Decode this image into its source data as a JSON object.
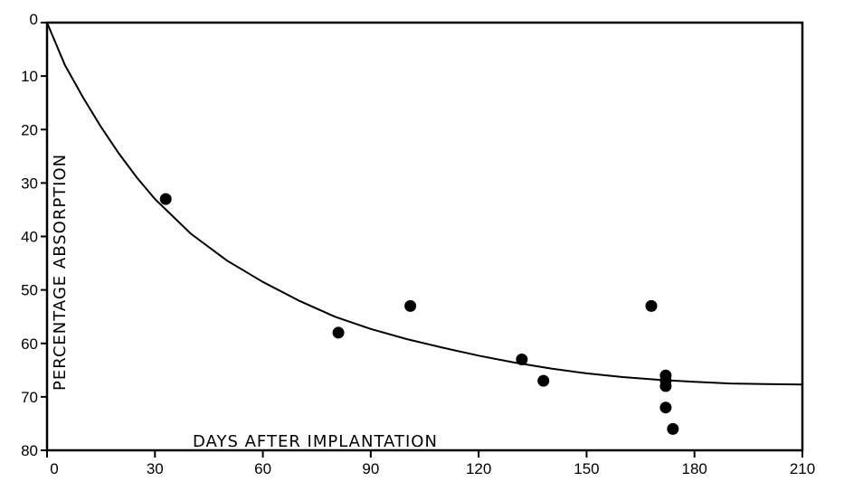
{
  "chart_data": {
    "type": "scatter",
    "xlabel": "DAYS AFTER IMPLANTATION",
    "ylabel": "PERCENTAGE ABSORPTION",
    "xlim": [
      0,
      210
    ],
    "ylim": [
      0,
      80
    ],
    "y_axis_inverted": true,
    "xticks": [
      "0",
      "30",
      "60",
      "90",
      "120",
      "150",
      "180",
      "210"
    ],
    "yticks": [
      "0",
      "10",
      "20",
      "30",
      "40",
      "50",
      "60",
      "70",
      "80"
    ],
    "grid": false,
    "curve": {
      "x": [
        0,
        5,
        10,
        15,
        20,
        25,
        30,
        40,
        50,
        60,
        70,
        80,
        90,
        100,
        110,
        120,
        130,
        140,
        150,
        160,
        170,
        180,
        190,
        200,
        210
      ],
      "y": [
        0,
        8.0,
        14.0,
        19.5,
        24.5,
        29.0,
        33.0,
        39.5,
        44.5,
        48.5,
        52.0,
        55.0,
        57.3,
        59.2,
        60.8,
        62.3,
        63.6,
        64.7,
        65.6,
        66.3,
        66.8,
        67.2,
        67.5,
        67.6,
        67.7
      ]
    },
    "points": {
      "x": [
        33,
        81,
        101,
        132,
        138,
        168,
        172,
        172,
        172,
        172,
        174
      ],
      "y": [
        33,
        58,
        53,
        63,
        67,
        53,
        66,
        67,
        68,
        72,
        76
      ]
    }
  }
}
